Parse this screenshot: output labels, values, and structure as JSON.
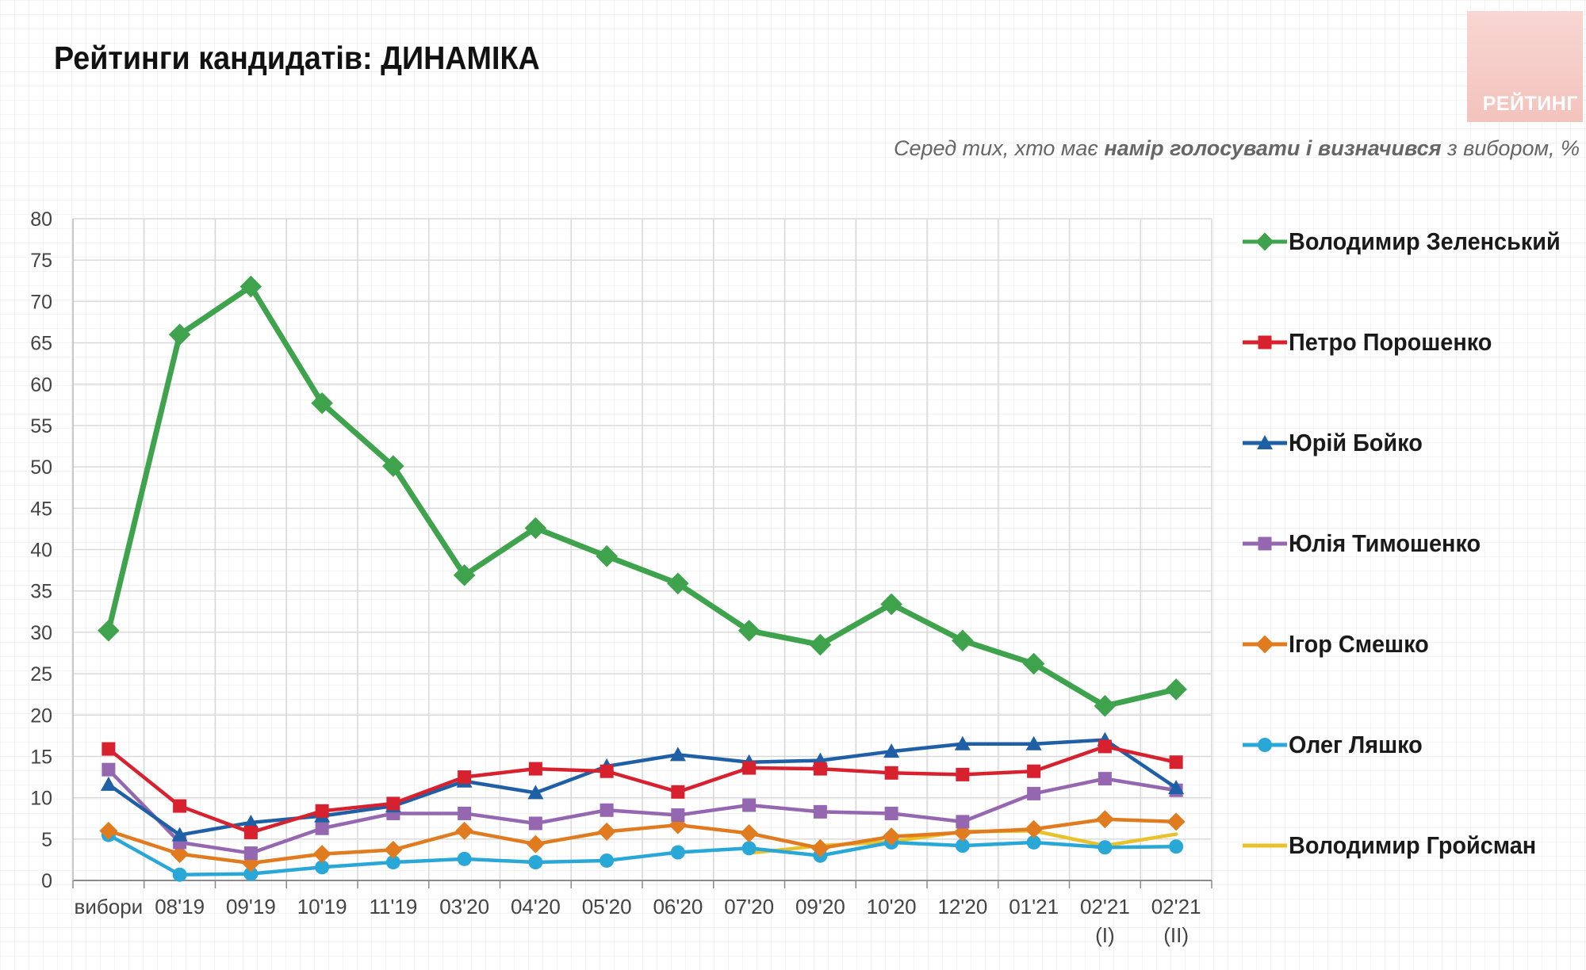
{
  "title": "Рейтинги кандидатів: ДИНАМІКА",
  "logo": {
    "text": "РЕЙТИНГ",
    "color": "#f3c3bd"
  },
  "subtitle": {
    "prefix": "Серед тих, хто має ",
    "bold": "намір голосувати і визначився",
    "suffix": " з вибором, %"
  },
  "chart_data": {
    "type": "line",
    "categories": [
      "вибори",
      "08'19",
      "09'19",
      "10'19",
      "11'19",
      "03'20",
      "04'20",
      "05'20",
      "06'20",
      "07'20",
      "09'20",
      "10'20",
      "12'20",
      "01'21",
      "02'21\n(I)",
      "02'21\n(II)"
    ],
    "ylim": [
      0,
      80
    ],
    "yticks": [
      0,
      5,
      10,
      15,
      20,
      25,
      30,
      35,
      40,
      45,
      50,
      55,
      60,
      65,
      70,
      75,
      80
    ],
    "grid": true,
    "legend": "right",
    "series": [
      {
        "name": "Володимир Зеленський",
        "color": "#3fa34d",
        "marker": "diamond",
        "values": [
          30.2,
          66.0,
          71.8,
          57.7,
          50.1,
          36.9,
          42.6,
          39.2,
          35.9,
          30.2,
          28.5,
          33.4,
          29.0,
          26.2,
          21.1,
          23.1
        ]
      },
      {
        "name": "Петро Порошенко",
        "color": "#d7212e",
        "marker": "square",
        "values": [
          15.9,
          9.0,
          5.8,
          8.4,
          9.3,
          12.5,
          13.5,
          13.2,
          10.7,
          13.6,
          13.5,
          13.0,
          12.8,
          13.2,
          16.2,
          14.3
        ]
      },
      {
        "name": "Юрій Бойко",
        "color": "#1f5fa6",
        "marker": "triangle",
        "values": [
          11.6,
          5.5,
          7.0,
          7.8,
          9.0,
          12.0,
          10.6,
          13.8,
          15.2,
          14.3,
          14.5,
          15.6,
          16.5,
          16.5,
          17.0,
          11.2
        ]
      },
      {
        "name": "Юлія Тимошенко",
        "color": "#9467b0",
        "marker": "square",
        "values": [
          13.4,
          4.6,
          3.3,
          6.3,
          8.1,
          8.1,
          6.9,
          8.5,
          7.9,
          9.1,
          8.3,
          8.1,
          7.1,
          10.5,
          12.3,
          10.9
        ]
      },
      {
        "name": "Ігор Смешко",
        "color": "#e07b1f",
        "marker": "diamond",
        "values": [
          6.0,
          3.2,
          2.1,
          3.2,
          3.7,
          6.0,
          4.4,
          5.9,
          6.7,
          5.7,
          3.9,
          5.3,
          5.8,
          6.2,
          7.4,
          7.1
        ]
      },
      {
        "name": "Олег Ляшко",
        "color": "#29a8d8",
        "marker": "circle",
        "values": [
          5.5,
          0.7,
          0.8,
          1.6,
          2.2,
          2.6,
          2.2,
          2.4,
          3.4,
          3.9,
          3.0,
          4.6,
          4.2,
          4.6,
          4.0,
          4.1
        ]
      },
      {
        "name": "Володимир Гройсман",
        "color": "#e7c22b",
        "marker": "none",
        "values": [
          null,
          null,
          null,
          null,
          null,
          null,
          null,
          null,
          null,
          3.3,
          4.2,
          4.7,
          5.9,
          6.0,
          4.2,
          5.6
        ]
      }
    ]
  }
}
